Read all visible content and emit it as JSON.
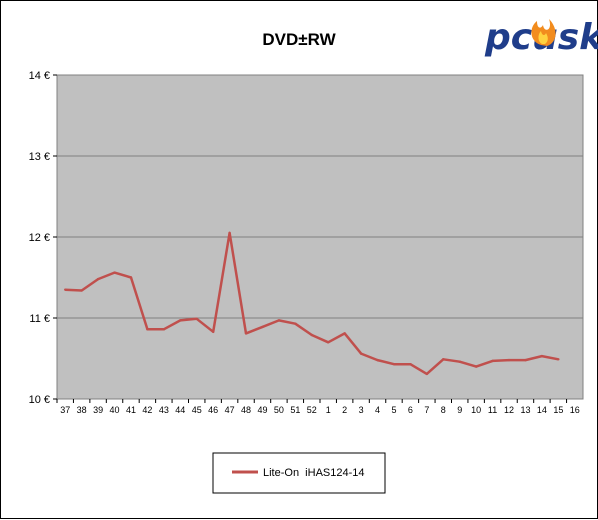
{
  "chart_data": {
    "type": "line",
    "title": "DVD±RW",
    "xlabel": "",
    "ylabel": "",
    "ylim": [
      10,
      14
    ],
    "y_ticks": [
      "10 €",
      "11 €",
      "12 €",
      "13 €",
      "14 €"
    ],
    "y_tick_values": [
      10,
      11,
      12,
      13,
      14
    ],
    "categories": [
      "37",
      "38",
      "39",
      "40",
      "41",
      "42",
      "43",
      "44",
      "45",
      "46",
      "47",
      "48",
      "49",
      "50",
      "51",
      "52",
      "1",
      "2",
      "3",
      "4",
      "5",
      "6",
      "7",
      "8",
      "9",
      "10",
      "11",
      "12",
      "13",
      "14",
      "15",
      "16"
    ],
    "series": [
      {
        "name": "Lite-On  iHAS124-14",
        "color": "#c0504d",
        "values": [
          11.35,
          11.34,
          11.48,
          11.56,
          11.5,
          10.86,
          10.86,
          10.97,
          10.99,
          10.83,
          12.05,
          10.81,
          10.89,
          10.97,
          10.93,
          10.79,
          10.7,
          10.81,
          10.56,
          10.48,
          10.43,
          10.43,
          10.31,
          10.49,
          10.46,
          10.4,
          10.47,
          10.48,
          10.48,
          10.53,
          10.49,
          null
        ]
      }
    ],
    "grid": true,
    "legend_position": "bottom"
  },
  "colors": {
    "plot_background": "#c0c0c0",
    "gridline": "#808080",
    "line": "#c0504d"
  },
  "logo": {
    "text": "pcusk",
    "icon": "flame-icon",
    "colors": [
      "#1f3d8a",
      "#f28c1e"
    ]
  }
}
